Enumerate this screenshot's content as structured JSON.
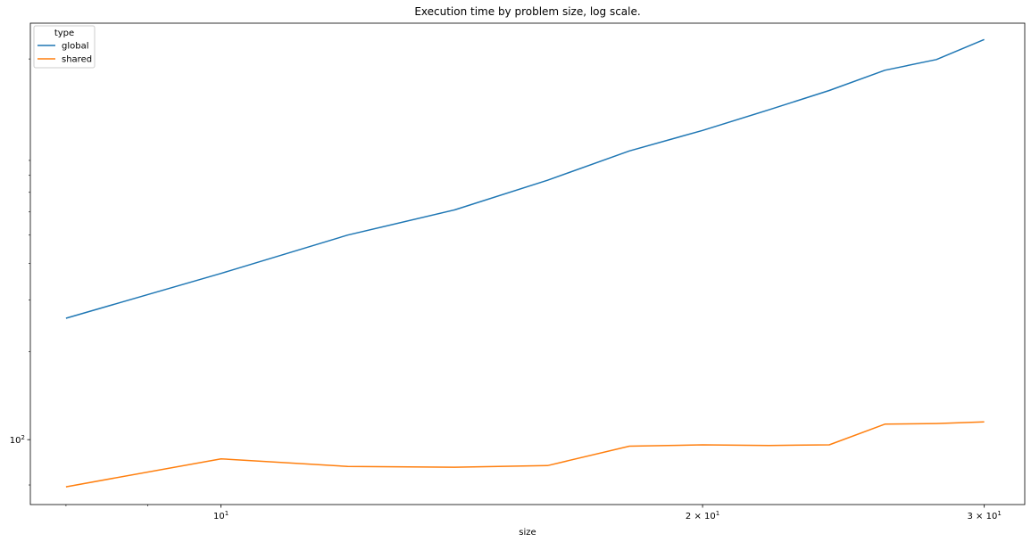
{
  "chart_data": {
    "type": "line",
    "title": "Execution time by problem size, log scale.",
    "xlabel": "size",
    "ylabel": "",
    "xscale": "log",
    "yscale": "log",
    "xlim": [
      7.6,
      31.8
    ],
    "ylim": [
      60,
      2650
    ],
    "x_ticks": [
      {
        "value": 10,
        "base": "10",
        "exp": "1"
      },
      {
        "value": 20,
        "base": "2 × 10",
        "exp": "1"
      },
      {
        "value": 30,
        "base": "3 × 10",
        "exp": "1"
      }
    ],
    "y_ticks": [
      {
        "value": 100,
        "base": "10",
        "exp": "2"
      }
    ],
    "x_minor_ticks": [
      8,
      9,
      40
    ],
    "y_minor_ticks": [
      70,
      200,
      300,
      400,
      500,
      600,
      700,
      800,
      900,
      2000
    ],
    "legend": {
      "title": "type",
      "position": "top-left"
    },
    "grid": false,
    "x": [
      8,
      10,
      12,
      14,
      16,
      18,
      20,
      22,
      24,
      26,
      28,
      30
    ],
    "series": [
      {
        "name": "global",
        "color": "#1f77b4",
        "values": [
          260,
          370,
          500,
          610,
          770,
          970,
          1140,
          1340,
          1560,
          1830,
          1990,
          2330
        ]
      },
      {
        "name": "shared",
        "color": "#ff7f0e",
        "values": [
          69,
          86,
          81,
          80.5,
          81.5,
          95,
          96,
          95.5,
          96,
          113,
          113.5,
          115
        ]
      }
    ]
  }
}
